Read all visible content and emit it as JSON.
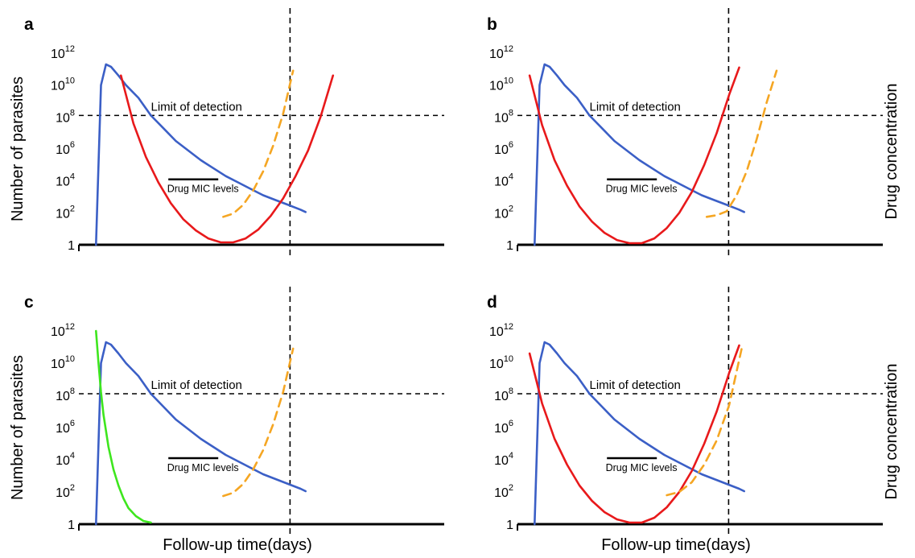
{
  "chart_data": [
    {
      "type": "line",
      "panel_label": "a",
      "xlabel": "",
      "ylabel": "Number of parasites",
      "right_label": "Drug concentration",
      "y_scale": "log",
      "ylim": [
        1,
        1000000000000
      ],
      "y_ticks": [
        {
          "base": "1",
          "exp": ""
        },
        {
          "base": "10",
          "exp": "2"
        },
        {
          "base": "10",
          "exp": "4"
        },
        {
          "base": "10",
          "exp": "6"
        },
        {
          "base": "10",
          "exp": "8"
        },
        {
          "base": "10",
          "exp": "10"
        },
        {
          "base": "10",
          "exp": "12"
        }
      ],
      "xlim": [
        0,
        100
      ],
      "annotations": {
        "limit_of_detection": "Limit of detection",
        "mic_levels": "Drug MIC levels"
      },
      "limit_of_detection": {
        "y_log10": 8.1
      },
      "vline": {
        "x": 84
      },
      "mic_segment": {
        "x": [
          32,
          52
        ],
        "y_log10": 4.1
      },
      "series": [
        {
          "color": "#3b5fc6",
          "dashed": false,
          "x": [
            3,
            5,
            7,
            9,
            12,
            15,
            20,
            25,
            30,
            35,
            40,
            45,
            50,
            55,
            60,
            65,
            70,
            75,
            80,
            85,
            87
          ],
          "y_log10": [
            0,
            10,
            11.3,
            11.15,
            10.6,
            10,
            9.2,
            8.1,
            7.3,
            6.5,
            5.9,
            5.3,
            4.8,
            4.3,
            3.9,
            3.5,
            3.1,
            2.8,
            2.5,
            2.2,
            2.05
          ]
        },
        {
          "color": "#e8191b",
          "dashed": false,
          "x": [
            13,
            18,
            23,
            28,
            33,
            38,
            43,
            48,
            53,
            58,
            63,
            68,
            73,
            78,
            83,
            88,
            93,
            98
          ],
          "y_log10": [
            10.6,
            7.6,
            5.5,
            3.9,
            2.6,
            1.6,
            0.9,
            0.4,
            0.15,
            0.15,
            0.4,
            0.95,
            1.8,
            2.9,
            4.3,
            5.9,
            8,
            10.6
          ]
        },
        {
          "color": "#f5a623",
          "dashed": true,
          "x": [
            54,
            58,
            62,
            66,
            70,
            74,
            78,
            82
          ],
          "y_log10": [
            1.75,
            1.95,
            2.5,
            3.4,
            4.6,
            6.2,
            8.2,
            10.9
          ]
        }
      ]
    },
    {
      "type": "line",
      "panel_label": "b",
      "xlabel": "",
      "ylabel": "",
      "right_label": "Drug concentration",
      "y_scale": "log",
      "ylim": [
        1,
        1000000000000
      ],
      "y_ticks": [
        {
          "base": "1",
          "exp": ""
        },
        {
          "base": "10",
          "exp": "2"
        },
        {
          "base": "10",
          "exp": "4"
        },
        {
          "base": "10",
          "exp": "6"
        },
        {
          "base": "10",
          "exp": "8"
        },
        {
          "base": "10",
          "exp": "10"
        },
        {
          "base": "10",
          "exp": "12"
        }
      ],
      "xlim": [
        0,
        100
      ],
      "annotations": {
        "limit_of_detection": "Limit of detection",
        "mic_levels": "Drug MIC levels"
      },
      "limit_of_detection": {
        "y_log10": 8.1
      },
      "vline": {
        "x": 84
      },
      "mic_segment": {
        "x": [
          32,
          52
        ],
        "y_log10": 4.1
      },
      "series": [
        {
          "color": "#3b5fc6",
          "dashed": false,
          "x": [
            3,
            5,
            7,
            9,
            12,
            15,
            20,
            25,
            30,
            35,
            40,
            45,
            50,
            55,
            60,
            65,
            70,
            75,
            80,
            85,
            87
          ],
          "y_log10": [
            0,
            10,
            11.3,
            11.15,
            10.6,
            10,
            9.2,
            8.1,
            7.3,
            6.5,
            5.9,
            5.3,
            4.8,
            4.3,
            3.9,
            3.5,
            3.1,
            2.8,
            2.5,
            2.2,
            2.05
          ]
        },
        {
          "color": "#e8191b",
          "dashed": false,
          "x": [
            1,
            6,
            11,
            16,
            21,
            26,
            31,
            36,
            41,
            46,
            51,
            56,
            61,
            66,
            71,
            76,
            81,
            85
          ],
          "y_log10": [
            10.6,
            7.5,
            5.3,
            3.7,
            2.4,
            1.45,
            0.75,
            0.3,
            0.1,
            0.1,
            0.4,
            1.05,
            2,
            3.3,
            5,
            7,
            9.4,
            11.1
          ]
        },
        {
          "color": "#f5a623",
          "dashed": true,
          "x": [
            72,
            76,
            80,
            84,
            88,
            92,
            96,
            100
          ],
          "y_log10": [
            1.75,
            1.85,
            2.1,
            3.1,
            4.6,
            6.6,
            8.9,
            10.9
          ]
        }
      ]
    },
    {
      "type": "line",
      "panel_label": "c",
      "xlabel": "Follow-up time(days)",
      "ylabel": "Number of parasites",
      "right_label": "Drug concentration",
      "y_scale": "log",
      "ylim": [
        1,
        1000000000000
      ],
      "y_ticks": [
        {
          "base": "1",
          "exp": ""
        },
        {
          "base": "10",
          "exp": "2"
        },
        {
          "base": "10",
          "exp": "4"
        },
        {
          "base": "10",
          "exp": "6"
        },
        {
          "base": "10",
          "exp": "8"
        },
        {
          "base": "10",
          "exp": "10"
        },
        {
          "base": "10",
          "exp": "12"
        }
      ],
      "xlim": [
        0,
        100
      ],
      "annotations": {
        "limit_of_detection": "Limit of detection",
        "mic_levels": "Drug MIC levels"
      },
      "limit_of_detection": {
        "y_log10": 8.1
      },
      "vline": {
        "x": 84
      },
      "mic_segment": {
        "x": [
          32,
          52
        ],
        "y_log10": 4.1
      },
      "series": [
        {
          "color": "#3b5fc6",
          "dashed": false,
          "x": [
            3,
            5,
            7,
            9,
            12,
            15,
            20,
            25,
            30,
            35,
            40,
            45,
            50,
            55,
            60,
            65,
            70,
            75,
            80,
            85,
            87
          ],
          "y_log10": [
            0,
            10,
            11.3,
            11.15,
            10.6,
            10,
            9.2,
            8.1,
            7.3,
            6.5,
            5.9,
            5.3,
            4.8,
            4.3,
            3.9,
            3.5,
            3.1,
            2.8,
            2.5,
            2.2,
            2.05
          ]
        },
        {
          "color": "#3ee61e",
          "dashed": false,
          "x": [
            3,
            4,
            5,
            6,
            8,
            10,
            12,
            14,
            16,
            19,
            22,
            25
          ],
          "y_log10": [
            12,
            10,
            8.2,
            6.8,
            4.8,
            3.4,
            2.4,
            1.6,
            1,
            0.5,
            0.2,
            0.1
          ]
        },
        {
          "color": "#f5a623",
          "dashed": true,
          "x": [
            54,
            58,
            62,
            66,
            70,
            74,
            78,
            82
          ],
          "y_log10": [
            1.75,
            1.95,
            2.5,
            3.4,
            4.6,
            6.2,
            8.2,
            10.9
          ]
        }
      ]
    },
    {
      "type": "line",
      "panel_label": "d",
      "xlabel": "Follow-up time(days)",
      "ylabel": "",
      "right_label": "",
      "y_scale": "log",
      "ylim": [
        1,
        1000000000000
      ],
      "y_ticks": [
        {
          "base": "1",
          "exp": ""
        },
        {
          "base": "10",
          "exp": "2"
        },
        {
          "base": "10",
          "exp": "4"
        },
        {
          "base": "10",
          "exp": "6"
        },
        {
          "base": "10",
          "exp": "8"
        },
        {
          "base": "10",
          "exp": "10"
        },
        {
          "base": "10",
          "exp": "12"
        }
      ],
      "xlim": [
        0,
        100
      ],
      "annotations": {
        "limit_of_detection": "Limit of detection",
        "mic_levels": "Drug MIC levels"
      },
      "limit_of_detection": {
        "y_log10": 8.1
      },
      "vline": {
        "x": 84
      },
      "mic_segment": {
        "x": [
          32,
          52
        ],
        "y_log10": 4.1
      },
      "series": [
        {
          "color": "#3b5fc6",
          "dashed": false,
          "x": [
            3,
            5,
            7,
            9,
            12,
            15,
            20,
            25,
            30,
            35,
            40,
            45,
            50,
            55,
            60,
            65,
            70,
            75,
            80,
            85,
            87
          ],
          "y_log10": [
            0,
            10,
            11.3,
            11.15,
            10.6,
            10,
            9.2,
            8.1,
            7.3,
            6.5,
            5.9,
            5.3,
            4.8,
            4.3,
            3.9,
            3.5,
            3.1,
            2.8,
            2.5,
            2.2,
            2.05
          ]
        },
        {
          "color": "#e8191b",
          "dashed": false,
          "x": [
            1,
            6,
            11,
            16,
            21,
            26,
            31,
            36,
            41,
            46,
            51,
            56,
            61,
            66,
            71,
            76,
            81,
            85
          ],
          "y_log10": [
            10.6,
            7.5,
            5.3,
            3.7,
            2.4,
            1.45,
            0.75,
            0.3,
            0.1,
            0.1,
            0.4,
            1.05,
            2,
            3.3,
            5,
            7,
            9.4,
            11.1
          ]
        },
        {
          "color": "#f5a623",
          "dashed": true,
          "x": [
            56,
            61,
            66,
            71,
            76,
            81,
            86
          ],
          "y_log10": [
            1.8,
            2,
            2.6,
            3.7,
            5.2,
            7.4,
            10.9
          ]
        }
      ]
    }
  ]
}
